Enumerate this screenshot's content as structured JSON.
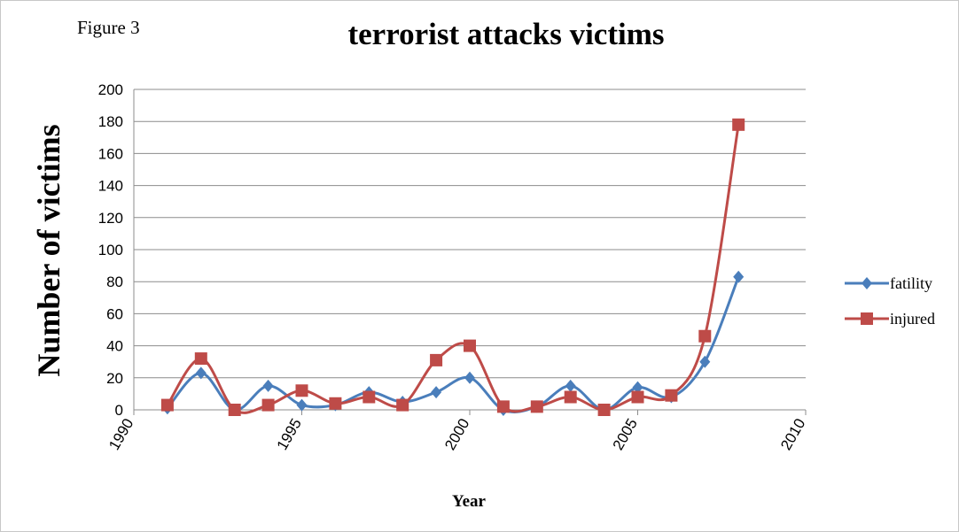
{
  "figure_label": "Figure 3",
  "chart_data": {
    "type": "line",
    "title": "terrorist attacks victims",
    "xlabel": "Year",
    "ylabel": "Number of victims",
    "xlim": [
      1990,
      2010
    ],
    "ylim": [
      0,
      200
    ],
    "x_ticks": [
      1990,
      1995,
      2000,
      2005,
      2010
    ],
    "y_ticks": [
      0,
      20,
      40,
      60,
      80,
      100,
      120,
      140,
      160,
      180,
      200
    ],
    "grid": "horizontal",
    "legend_position": "right",
    "x": [
      1991,
      1992,
      1993,
      1994,
      1995,
      1996,
      1997,
      1998,
      1999,
      2000,
      2001,
      2002,
      2003,
      2004,
      2005,
      2006,
      2007,
      2008
    ],
    "series": [
      {
        "name": "fatility",
        "color": "#4a7ebb",
        "marker": "diamond",
        "values": [
          1,
          23,
          0,
          15,
          3,
          3,
          11,
          5,
          11,
          20,
          0,
          2,
          15,
          0,
          14,
          8,
          30,
          83
        ]
      },
      {
        "name": "injured",
        "color": "#be4b48",
        "marker": "square",
        "values": [
          3,
          32,
          0,
          3,
          12,
          4,
          8,
          3,
          31,
          40,
          2,
          2,
          8,
          0,
          8,
          9,
          46,
          178
        ]
      }
    ]
  }
}
